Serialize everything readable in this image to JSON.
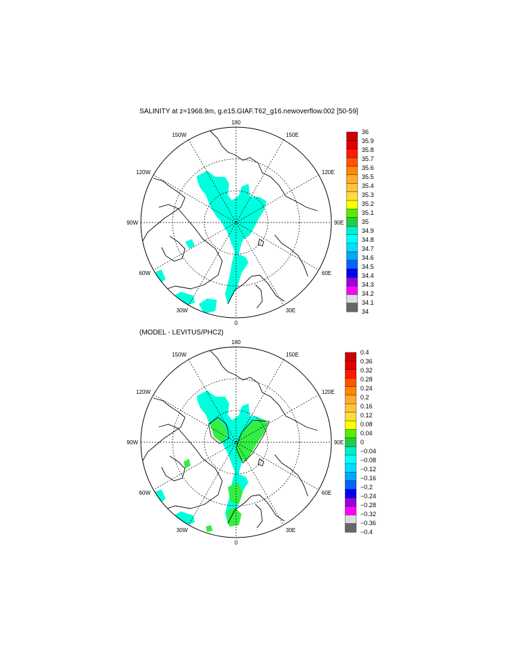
{
  "top_panel": {
    "title": "SALINITY at z=1968.9m, g.e15.GIAF.T62_g16.newoverflow.002 [50-59]",
    "lon_labels": {
      "top": "180",
      "bottom": "0",
      "left": "90W",
      "right": "90E",
      "ul": "150W",
      "ul2": "120W",
      "ll": "60W",
      "ll2": "30W",
      "ur": "150E",
      "ur2": "120E",
      "lr": "60E",
      "lr2": "30E"
    },
    "colorbar": {
      "labels": [
        "36",
        "35.9",
        "35.8",
        "35.7",
        "35.6",
        "35.5",
        "35.4",
        "35.3",
        "35.2",
        "35.1",
        "35",
        "34.9",
        "34.8",
        "34.7",
        "34.6",
        "34.5",
        "34.4",
        "34.3",
        "34.2",
        "34.1",
        "34"
      ],
      "colors": [
        "#cc0000",
        "#e00000",
        "#ff1a00",
        "#ff5500",
        "#ff8800",
        "#ffaa33",
        "#ffc53a",
        "#ffdd40",
        "#ffff00",
        "#55ee00",
        "#22cc44",
        "#00eecc",
        "#00ffff",
        "#00ddff",
        "#00a8ff",
        "#0066ff",
        "#0000ee",
        "#9900dd",
        "#ff00ff",
        "#dddddd",
        "#666666"
      ]
    }
  },
  "bottom_panel": {
    "title": "(MODEL - LEVITUS/PHC2)",
    "lon_labels": {
      "top": "180",
      "bottom": "0",
      "left": "90W",
      "right": "90E",
      "ul": "150W",
      "ul2": "120W",
      "ll": "60W",
      "ll2": "30W",
      "ur": "150E",
      "ur2": "120E",
      "lr": "60E",
      "lr2": "30E"
    },
    "colorbar": {
      "labels": [
        "0.4",
        "0.36",
        "0.32",
        "0.28",
        "0.24",
        "0.2",
        "0.16",
        "0.12",
        "0.08",
        "0.04",
        "0",
        "−0.04",
        "−0.08",
        "−0.12",
        "−0.16",
        "−0.2",
        "−0.24",
        "−0.28",
        "−0.32",
        "−0.36",
        "−0.4"
      ],
      "colors": [
        "#cc0000",
        "#e00000",
        "#ff1a00",
        "#ff5500",
        "#ff8800",
        "#ffaa33",
        "#ffc53a",
        "#ffdd40",
        "#ffff00",
        "#55ee00",
        "#22cc44",
        "#00eecc",
        "#00ffff",
        "#00ddff",
        "#00a8ff",
        "#0066ff",
        "#0000ee",
        "#9900dd",
        "#ff00ff",
        "#dddddd",
        "#666666"
      ]
    }
  },
  "colors": {
    "salinity_fill": "#00ffdd",
    "positive_anomaly_fill": "#33ee44",
    "negative_anomaly_fill": "#00ffdd"
  }
}
